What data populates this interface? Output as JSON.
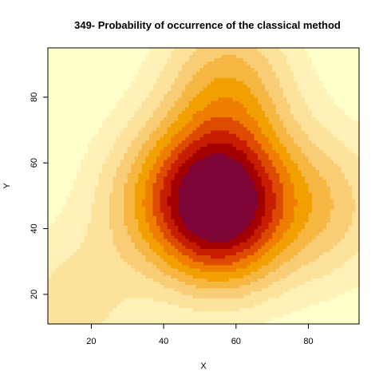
{
  "chart_data": {
    "type": "heatmap",
    "title": "349- Probability of occurrence of the classical method",
    "xlabel": "X",
    "ylabel": "Y",
    "xlim": [
      8,
      94
    ],
    "ylim": [
      11,
      95
    ],
    "x_ticks": [
      20,
      40,
      60,
      80
    ],
    "y_ticks": [
      20,
      40,
      60,
      80
    ],
    "grid": false,
    "legend": "none",
    "palette": [
      "#FFFFCC",
      "#FFF1B7",
      "#FDE29C",
      "#F9CC76",
      "#F5B642",
      "#F29F00",
      "#EE7D00",
      "#DD4B00",
      "#C71D00",
      "#A50000",
      "#7F0537"
    ],
    "hotspots": [
      {
        "x": 56,
        "y": 47,
        "weight": 1.0
      },
      {
        "x": 58,
        "y": 84,
        "weight": 0.38
      },
      {
        "x": 85,
        "y": 47,
        "weight": 0.3
      },
      {
        "x": 37,
        "y": 50,
        "weight": 0.28
      },
      {
        "x": 14,
        "y": 16,
        "weight": 0.22
      }
    ]
  }
}
